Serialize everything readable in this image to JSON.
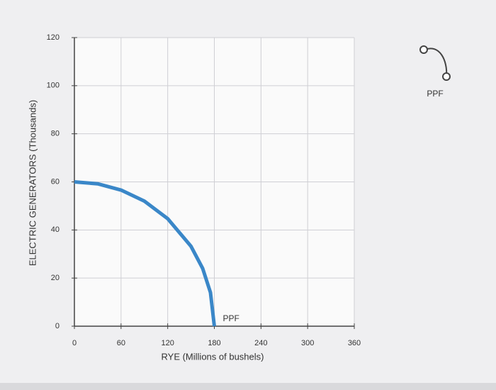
{
  "chart_data": {
    "type": "line",
    "x_label": "RYE (Millions of bushels)",
    "y_label": "ELECTRIC GENERATORS (Thousands)",
    "xlim": [
      0,
      360
    ],
    "xticks": [
      0,
      60,
      120,
      180,
      240,
      300,
      360
    ],
    "ylim": [
      0,
      120
    ],
    "yticks": [
      0,
      20,
      40,
      60,
      80,
      100,
      120
    ],
    "grid": true,
    "series": [
      {
        "name": "PPF",
        "color": "#3a87c8",
        "x": [
          0,
          30,
          60,
          90,
          120,
          150,
          165,
          175,
          180
        ],
        "values": [
          60,
          59.2,
          56.6,
          52,
          44.7,
          33.2,
          24,
          14,
          0
        ]
      }
    ],
    "annotations": [
      {
        "text": "PPF"
      }
    ],
    "legend": "top-right"
  }
}
